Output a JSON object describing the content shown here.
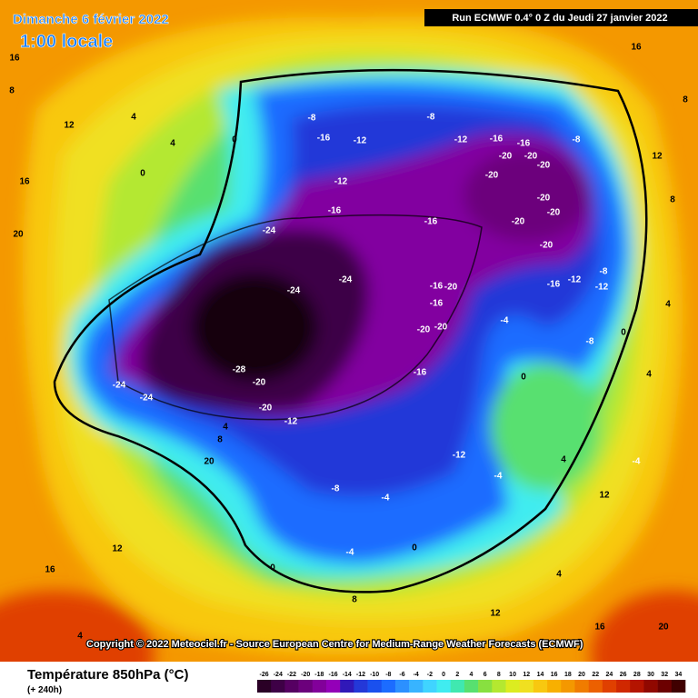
{
  "header": {
    "date": "Dimanche 6 février 2022",
    "time": "1:00 locale",
    "run": "Run ECMWF 0.4° 0 Z du Jeudi 27 janvier 2022"
  },
  "copyright": "Copyright © 2022 Meteociel.fr - Source European Centre for Medium-Range Weather Forecasts (ECMWF)",
  "legend": {
    "title": "Température 850hPa (°C)",
    "lead": "(+ 240h)",
    "ticks": [
      -26,
      -24,
      -22,
      -20,
      -18,
      -16,
      -14,
      -12,
      -10,
      -8,
      -6,
      -4,
      -2,
      0,
      2,
      4,
      6,
      8,
      10,
      12,
      14,
      16,
      18,
      20,
      22,
      24,
      26,
      28,
      30,
      32,
      34
    ],
    "colors": [
      "#2a0026",
      "#3e0046",
      "#560062",
      "#6c007c",
      "#82009a",
      "#9400b8",
      "#3018b8",
      "#2438d8",
      "#1a50ee",
      "#1c6cff",
      "#2c90ff",
      "#38b4ff",
      "#40d4ff",
      "#40ecf0",
      "#40e8b0",
      "#58e070",
      "#88e040",
      "#b4e830",
      "#dcec20",
      "#f0e020",
      "#f8c810",
      "#f8b000",
      "#f49800",
      "#f07c00",
      "#ec6000",
      "#e04000",
      "#d02800",
      "#b41400",
      "#900800",
      "#6c0000",
      "#400000"
    ]
  },
  "map_labels": [
    -24,
    -28,
    -20,
    -24,
    -24,
    -20,
    -12,
    -24,
    -16,
    -20,
    -16,
    -20,
    -20,
    -16,
    -8,
    -12,
    -16,
    -16,
    -20,
    -20,
    -20,
    -20,
    -20,
    -20,
    -20,
    -20,
    -8,
    -8,
    -16,
    -12,
    -12,
    -16,
    -16,
    -24,
    -16,
    -12,
    -8,
    -12,
    -4,
    0,
    -8,
    0,
    4,
    -12,
    -8,
    -4,
    -4,
    0,
    0,
    8,
    12,
    4,
    12,
    16,
    20,
    16,
    8,
    12,
    4,
    4,
    0,
    0,
    16,
    16,
    12,
    8,
    8,
    4,
    16,
    20,
    20,
    8,
    4,
    4,
    -4,
    -4,
    12,
    4
  ]
}
